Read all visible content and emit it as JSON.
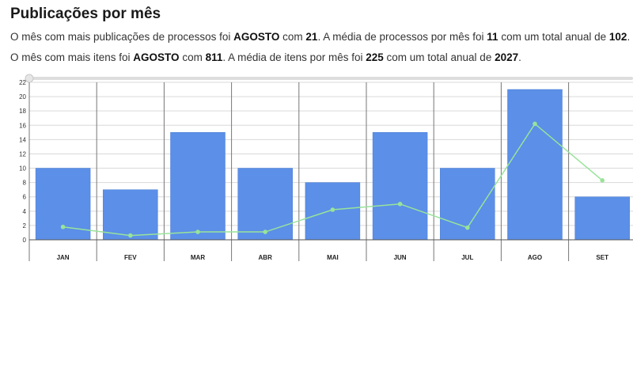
{
  "page": {
    "title": "Publicações por mês",
    "line1": {
      "p1": "O mês com mais publicações de processos foi ",
      "month": "AGOSTO",
      "p2": " com ",
      "max": "21",
      "p3": ". A média de processos por mês foi ",
      "avg": "11",
      "p4": " com um total anual de ",
      "total": "102",
      "p5": "."
    },
    "line2": {
      "p1": "O mês com mais itens foi ",
      "month": "AGOSTO",
      "p2": " com ",
      "max": "811",
      "p3": ". A média de itens por mês foi ",
      "avg": "225",
      "p4": " com um total anual de ",
      "total": "2027",
      "p5": "."
    }
  },
  "colors": {
    "bar": "#5b8fe8",
    "line": "#99e39a",
    "grid": "#d9d9d9",
    "slider": "#dddddd"
  },
  "chart_data": {
    "type": "bar",
    "categories": [
      "JAN",
      "FEV",
      "MAR",
      "ABR",
      "MAI",
      "JUN",
      "JUL",
      "AGO",
      "SET"
    ],
    "series": [
      {
        "type": "bar",
        "values": [
          10,
          7,
          15,
          10,
          8,
          15,
          10,
          21,
          6
        ]
      },
      {
        "type": "line",
        "values": [
          1.8,
          0.6,
          1.1,
          1.1,
          4.2,
          5.0,
          1.7,
          16.2,
          8.3
        ]
      }
    ],
    "yticks": [
      "0",
      "2",
      "4",
      "6",
      "8",
      "10",
      "12",
      "14",
      "16",
      "18",
      "20",
      "22"
    ],
    "ylim": [
      0,
      22
    ],
    "grid": true
  }
}
